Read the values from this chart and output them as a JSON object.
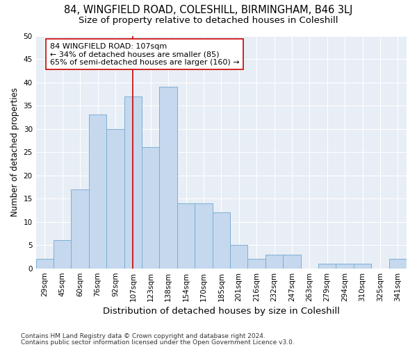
{
  "title1": "84, WINGFIELD ROAD, COLESHILL, BIRMINGHAM, B46 3LJ",
  "title2": "Size of property relative to detached houses in Coleshill",
  "xlabel": "Distribution of detached houses by size in Coleshill",
  "ylabel": "Number of detached properties",
  "footnote1": "Contains HM Land Registry data © Crown copyright and database right 2024.",
  "footnote2": "Contains public sector information licensed under the Open Government Licence v3.0.",
  "bar_labels": [
    "29sqm",
    "45sqm",
    "60sqm",
    "76sqm",
    "92sqm",
    "107sqm",
    "123sqm",
    "138sqm",
    "154sqm",
    "170sqm",
    "185sqm",
    "201sqm",
    "216sqm",
    "232sqm",
    "247sqm",
    "263sqm",
    "279sqm",
    "294sqm",
    "310sqm",
    "325sqm",
    "341sqm"
  ],
  "bar_values": [
    2,
    6,
    17,
    33,
    30,
    37,
    26,
    39,
    14,
    14,
    12,
    5,
    2,
    3,
    3,
    0,
    1,
    1,
    1,
    0,
    2
  ],
  "bar_color": "#c5d8ee",
  "bar_edge_color": "#7bafd4",
  "highlight_line_color": "#cc0000",
  "annotation_text": "84 WINGFIELD ROAD: 107sqm\n← 34% of detached houses are smaller (85)\n65% of semi-detached houses are larger (160) →",
  "annotation_box_edgecolor": "#cc0000",
  "annotation_box_facecolor": "#ffffff",
  "ylim": [
    0,
    50
  ],
  "yticks": [
    0,
    5,
    10,
    15,
    20,
    25,
    30,
    35,
    40,
    45,
    50
  ],
  "fig_background_color": "#ffffff",
  "plot_background_color": "#e8eef5",
  "grid_color": "#ffffff",
  "title1_fontsize": 10.5,
  "title2_fontsize": 9.5,
  "xlabel_fontsize": 9.5,
  "ylabel_fontsize": 8.5,
  "tick_fontsize": 7.5,
  "footnote_fontsize": 6.5
}
